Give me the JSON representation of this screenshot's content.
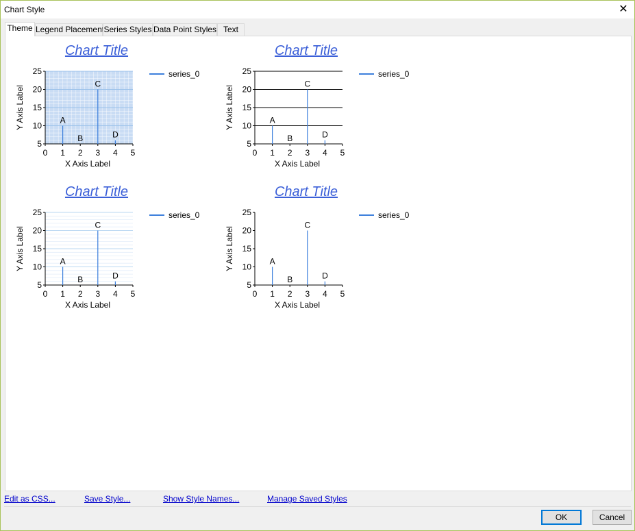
{
  "window": {
    "title": "Chart Style"
  },
  "tabs": [
    "Theme",
    "Legend Placement",
    "Series Styles",
    "Data Point Styles",
    "Text"
  ],
  "active_tab": "Theme",
  "colors": {
    "accent": "#3b5fd8",
    "series": "#3c7fdc",
    "grid_dark": "#000000",
    "grid_light": "#b9d7f2",
    "plot_fill": "#c9dcf4"
  },
  "chart_data": [
    {
      "type": "bar",
      "theme": "filled-grid",
      "title": "Chart Title",
      "xlabel": "X Axis Label",
      "ylabel": "Y Axis Label",
      "legend": [
        "series_0"
      ],
      "x_ticks": [
        "0",
        "1",
        "2",
        "3",
        "4",
        "5"
      ],
      "y_ticks": [
        "5",
        "10",
        "15",
        "20",
        "25"
      ],
      "xlim": [
        0,
        5
      ],
      "ylim": [
        5,
        25
      ],
      "points": [
        {
          "label": "A",
          "x": 1,
          "y": 10
        },
        {
          "label": "B",
          "x": 2,
          "y": 5
        },
        {
          "label": "C",
          "x": 3,
          "y": 20
        },
        {
          "label": "D",
          "x": 4,
          "y": 6
        }
      ]
    },
    {
      "type": "bar",
      "theme": "black-grid",
      "title": "Chart Title",
      "xlabel": "X Axis Label",
      "ylabel": "Y Axis Label",
      "legend": [
        "series_0"
      ],
      "x_ticks": [
        "0",
        "1",
        "2",
        "3",
        "4",
        "5"
      ],
      "y_ticks": [
        "5",
        "10",
        "15",
        "20",
        "25"
      ],
      "xlim": [
        0,
        5
      ],
      "ylim": [
        5,
        25
      ],
      "points": [
        {
          "label": "A",
          "x": 1,
          "y": 10
        },
        {
          "label": "B",
          "x": 2,
          "y": 5
        },
        {
          "label": "C",
          "x": 3,
          "y": 20
        },
        {
          "label": "D",
          "x": 4,
          "y": 6
        }
      ]
    },
    {
      "type": "bar",
      "theme": "light-grid",
      "title": "Chart Title",
      "xlabel": "X Axis Label",
      "ylabel": "Y Axis Label",
      "legend": [
        "series_0"
      ],
      "x_ticks": [
        "0",
        "1",
        "2",
        "3",
        "4",
        "5"
      ],
      "y_ticks": [
        "5",
        "10",
        "15",
        "20",
        "25"
      ],
      "xlim": [
        0,
        5
      ],
      "ylim": [
        5,
        25
      ],
      "points": [
        {
          "label": "A",
          "x": 1,
          "y": 10
        },
        {
          "label": "B",
          "x": 2,
          "y": 5
        },
        {
          "label": "C",
          "x": 3,
          "y": 20
        },
        {
          "label": "D",
          "x": 4,
          "y": 6
        }
      ]
    },
    {
      "type": "bar",
      "theme": "plain",
      "title": "Chart Title",
      "xlabel": "X Axis Label",
      "ylabel": "Y Axis Label",
      "legend": [
        "series_0"
      ],
      "x_ticks": [
        "0",
        "1",
        "2",
        "3",
        "4",
        "5"
      ],
      "y_ticks": [
        "5",
        "10",
        "15",
        "20",
        "25"
      ],
      "xlim": [
        0,
        5
      ],
      "ylim": [
        5,
        25
      ],
      "points": [
        {
          "label": "A",
          "x": 1,
          "y": 10
        },
        {
          "label": "B",
          "x": 2,
          "y": 5
        },
        {
          "label": "C",
          "x": 3,
          "y": 20
        },
        {
          "label": "D",
          "x": 4,
          "y": 6
        }
      ]
    }
  ],
  "links": [
    "Edit as CSS...",
    "Save Style...",
    "Show Style Names...",
    "Manage Saved Styles"
  ],
  "buttons": {
    "ok": "OK",
    "cancel": "Cancel"
  }
}
